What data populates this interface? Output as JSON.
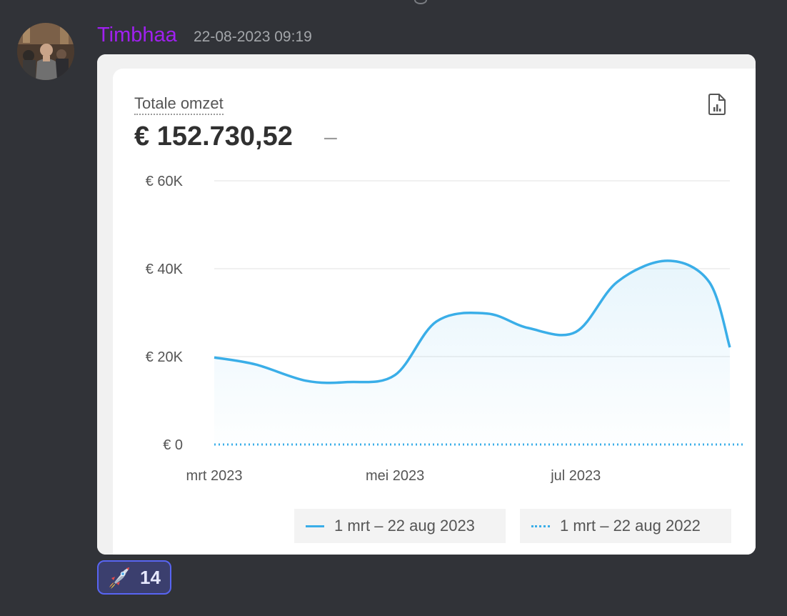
{
  "message": {
    "username": "Timbhaa",
    "timestamp": "22-08-2023 09:19",
    "accent_color": "#a020f0"
  },
  "card": {
    "title": "Totale omzet",
    "value": "€ 152.730,52",
    "delta": "–",
    "icon": "report-file-icon"
  },
  "chart_data": {
    "type": "line",
    "x": [
      "2023-03-01",
      "2023-03-15",
      "2023-04-01",
      "2023-04-15",
      "2023-05-01",
      "2023-05-15",
      "2023-06-01",
      "2023-06-15",
      "2023-07-01",
      "2023-07-15",
      "2023-08-01",
      "2023-08-15",
      "2023-08-22"
    ],
    "series": [
      {
        "name": "1 mrt – 22 aug 2023",
        "style": "solid",
        "values": [
          19800,
          18200,
          14500,
          14200,
          15800,
          28000,
          29800,
          26500,
          25600,
          37000,
          41800,
          37000,
          22100
        ]
      },
      {
        "name": "1 mrt – 22 aug 2022",
        "style": "dotted",
        "values": [
          0,
          0,
          0,
          0,
          0,
          0,
          0,
          0,
          0,
          0,
          0,
          0,
          0
        ]
      }
    ],
    "xticks": [
      "mrt 2023",
      "mei 2023",
      "jul 2023"
    ],
    "yticks": [
      "€ 0",
      "€ 20K",
      "€ 40K",
      "€ 60K"
    ],
    "ytick_values": [
      0,
      20000,
      40000,
      60000
    ],
    "ylim": [
      0,
      60000
    ],
    "grid": true,
    "legend_placement": "bottom-right",
    "line_color": "#3aaee8"
  },
  "reaction": {
    "emoji": "rocket-icon",
    "count": "14"
  }
}
